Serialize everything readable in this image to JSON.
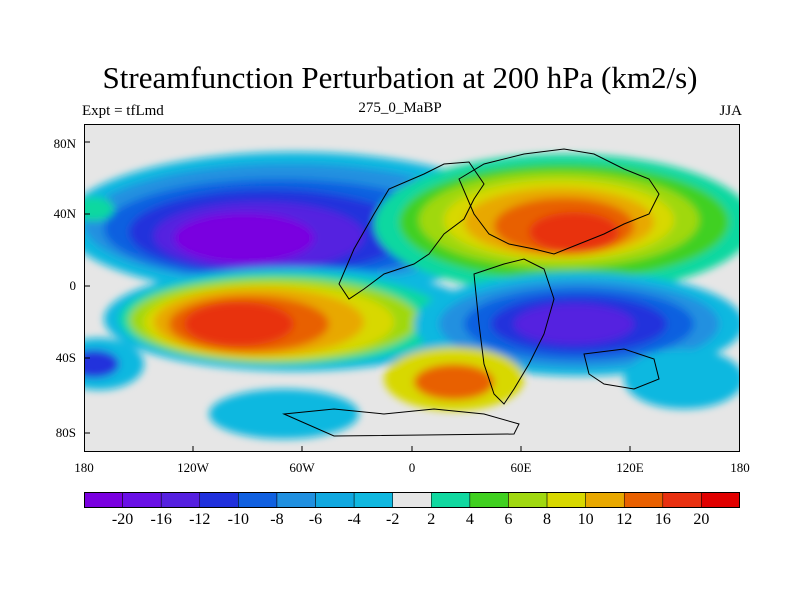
{
  "title": "Streamfunction Perturbation at 200 hPa (km2/s)",
  "subtitle_left": "Expt = tfLmd",
  "subtitle_center": "275_0_MaBP",
  "subtitle_right": "JJA",
  "y_ticks": [
    "80N",
    "40N",
    "0",
    "40S",
    "80S"
  ],
  "x_ticks": [
    "180",
    "120W",
    "60W",
    "0",
    "60E",
    "120E",
    "180"
  ],
  "colorbar": {
    "labels": [
      "-20",
      "-16",
      "-12",
      "-10",
      "-8",
      "-6",
      "-4",
      "-2",
      "2",
      "4",
      "6",
      "8",
      "10",
      "12",
      "16",
      "20"
    ],
    "colors": [
      "#7a00e0",
      "#6a10e6",
      "#5520e0",
      "#2030dc",
      "#1060e0",
      "#2090e0",
      "#10a8e0",
      "#10b8e0",
      "#e6e6e6",
      "#10d8a0",
      "#40d020",
      "#a0d810",
      "#d8d800",
      "#e8a800",
      "#e86000",
      "#e83010",
      "#e00000"
    ]
  }
}
